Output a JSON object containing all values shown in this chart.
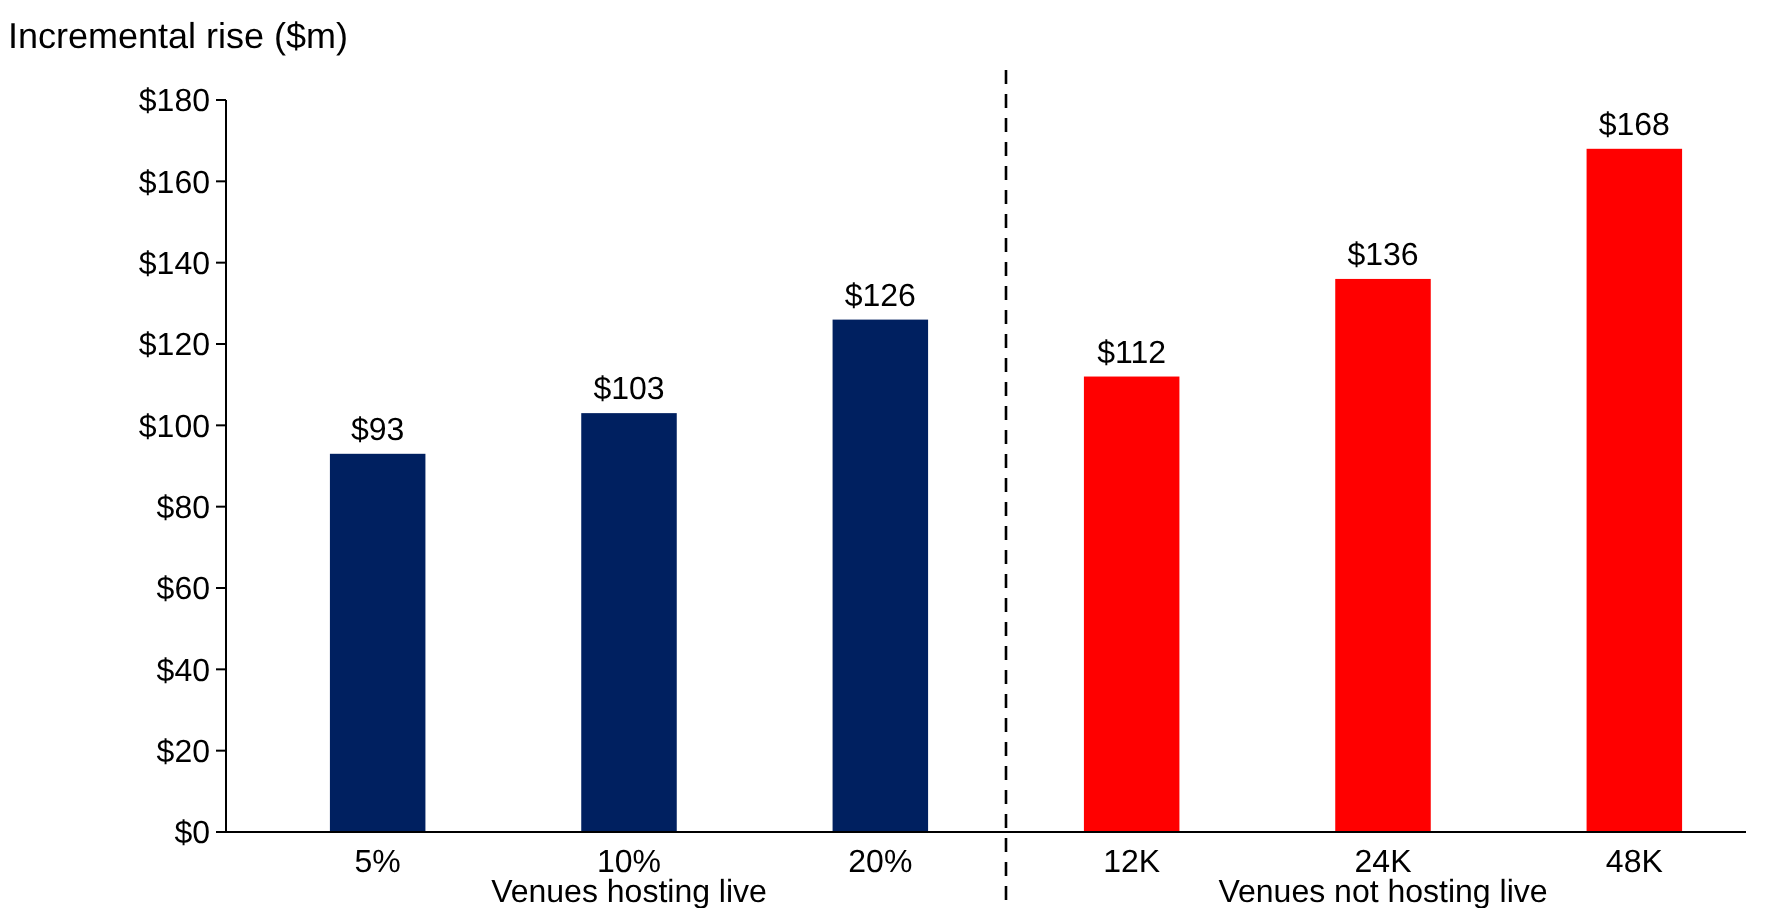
{
  "chart_data": {
    "type": "bar",
    "ylabel": "Incremental rise ($m)",
    "categories": [
      "5%",
      "10%",
      "20%",
      "12K",
      "24K",
      "48K"
    ],
    "values": [
      93,
      103,
      126,
      112,
      136,
      168
    ],
    "colors": [
      "#002060",
      "#002060",
      "#002060",
      "#ff0000",
      "#ff0000",
      "#ff0000"
    ],
    "value_labels": [
      "$93",
      "$103",
      "$126",
      "$112",
      "$136",
      "$168"
    ],
    "ylim": [
      0,
      180
    ],
    "yticks": [
      {
        "value": 0,
        "label": "$0"
      },
      {
        "value": 20,
        "label": "$20"
      },
      {
        "value": 40,
        "label": "$40"
      },
      {
        "value": 60,
        "label": "$60"
      },
      {
        "value": 80,
        "label": "$80"
      },
      {
        "value": 100,
        "label": "$100"
      },
      {
        "value": 120,
        "label": "$120"
      },
      {
        "value": 140,
        "label": "$140"
      },
      {
        "value": 160,
        "label": "$160"
      },
      {
        "value": 180,
        "label": "$180"
      }
    ],
    "annotations": [
      "Venues hosting live",
      "Venues not hosting live"
    ],
    "grid": false
  }
}
